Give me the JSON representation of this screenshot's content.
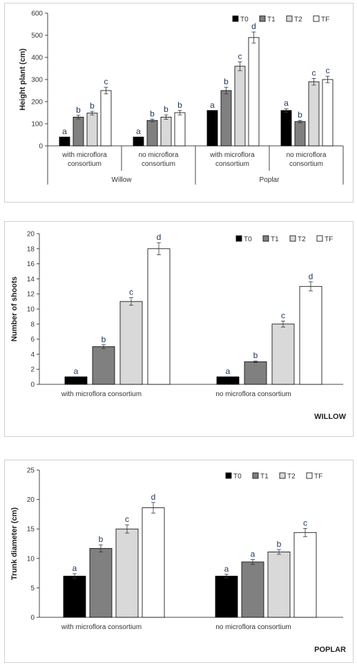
{
  "colors": {
    "T0": "#000000",
    "T1": "#808080",
    "T2": "#d9d9d9",
    "TF": "#ffffff"
  },
  "chart_data": [
    {
      "type": "bar",
      "ylabel": "Height plant (cm)",
      "ylim": [
        0,
        600
      ],
      "yticks": [
        0,
        100,
        200,
        300,
        400,
        500,
        600
      ],
      "legend": "top-right",
      "series_names": [
        "T0",
        "T1",
        "T2",
        "TF"
      ],
      "groups": [
        {
          "label": "with microflora consortium",
          "values": [
            40,
            130,
            148,
            250
          ],
          "errors": [
            0,
            8,
            8,
            15
          ],
          "letters": [
            "a",
            "b",
            "b",
            "c"
          ]
        },
        {
          "label": "no microflora consortium",
          "values": [
            40,
            115,
            130,
            150
          ],
          "errors": [
            0,
            6,
            10,
            10
          ],
          "letters": [
            "a",
            "b",
            "b",
            "b"
          ]
        },
        {
          "label": "with microflora consortium",
          "values": [
            160,
            250,
            360,
            490
          ],
          "errors": [
            0,
            15,
            20,
            25
          ],
          "letters": [
            "a",
            "b",
            "c",
            "d"
          ]
        },
        {
          "label": "no microflora consortium",
          "values": [
            160,
            110,
            290,
            300
          ],
          "errors": [
            8,
            5,
            15,
            15
          ],
          "letters": [
            "a",
            "b",
            "c",
            "c"
          ]
        }
      ],
      "categories": [
        "Willow",
        "Poplar"
      ]
    },
    {
      "type": "bar",
      "ylabel": "Number of shoots",
      "ylim": [
        0,
        20
      ],
      "yticks": [
        0,
        2,
        4,
        6,
        8,
        10,
        12,
        14,
        16,
        18,
        20
      ],
      "legend": "top-right",
      "series_names": [
        "T0",
        "T1",
        "T2",
        "TF"
      ],
      "groups": [
        {
          "label": "with microflora consortium",
          "values": [
            1,
            5,
            11,
            18
          ],
          "errors": [
            0,
            0.25,
            0.5,
            0.8
          ],
          "letters": [
            "a",
            "b",
            "c",
            "d"
          ]
        },
        {
          "label": "no microflora consortium",
          "values": [
            1,
            3,
            8,
            13
          ],
          "errors": [
            0,
            0.1,
            0.4,
            0.6
          ],
          "letters": [
            "a",
            "b",
            "c",
            "d"
          ]
        }
      ],
      "corner_label": "WILLOW"
    },
    {
      "type": "bar",
      "ylabel": "Trunk diameter (cm)",
      "ylim": [
        0,
        25
      ],
      "yticks": [
        0,
        5,
        10,
        15,
        20,
        25
      ],
      "legend": "top-right",
      "series_names": [
        "T0",
        "T1",
        "T2",
        "TF"
      ],
      "groups": [
        {
          "label": "with microflora consortium",
          "values": [
            7,
            11.7,
            15,
            18.6
          ],
          "errors": [
            0.4,
            0.6,
            0.7,
            0.9
          ],
          "letters": [
            "a",
            "b",
            "c",
            "d"
          ]
        },
        {
          "label": "no microflora consortium",
          "values": [
            7,
            9.4,
            11.1,
            14.4
          ],
          "errors": [
            0.3,
            0.4,
            0.4,
            0.7
          ],
          "letters": [
            "a",
            "a",
            "b",
            "c"
          ]
        }
      ],
      "corner_label": "POPLAR"
    }
  ]
}
